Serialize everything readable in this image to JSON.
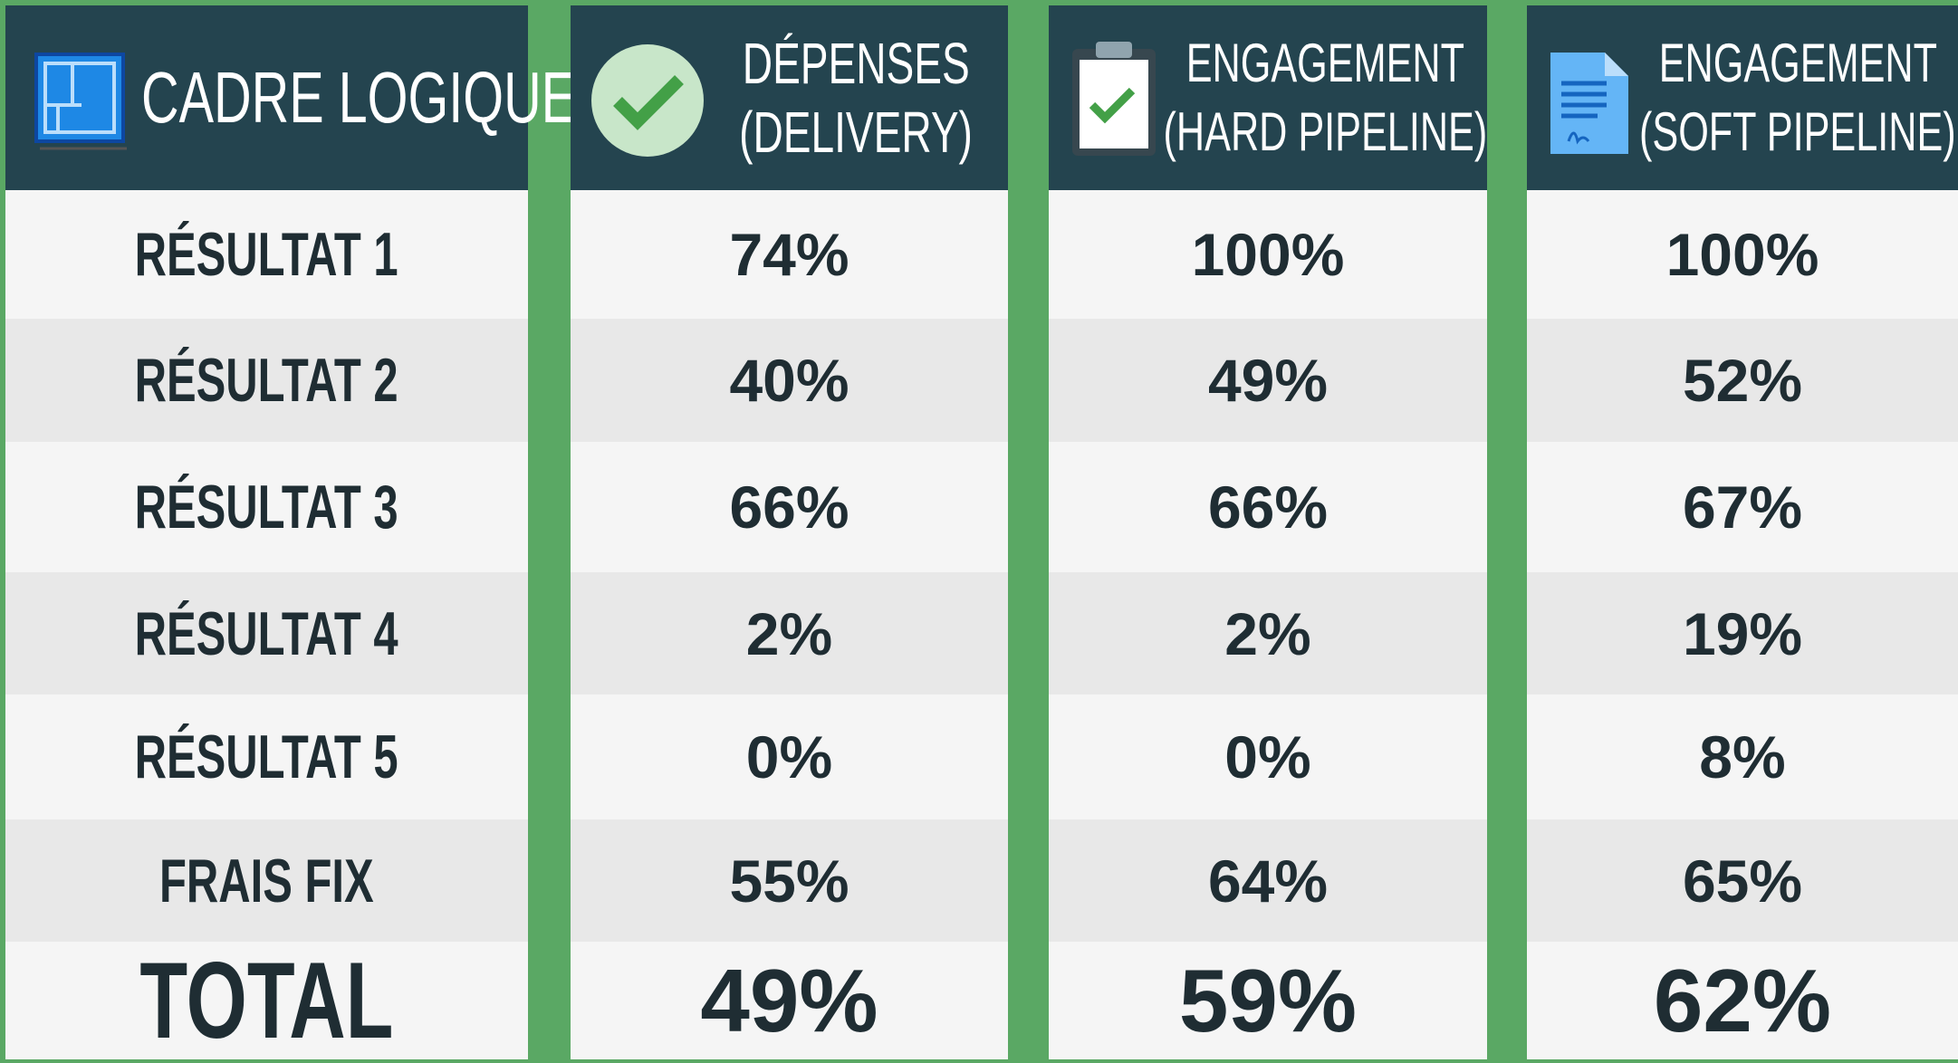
{
  "header": [
    {
      "title": [
        "CADRE LOGIQUE"
      ]
    },
    {
      "title": [
        "DÉPENSES",
        "(DELIVERY)"
      ]
    },
    {
      "title": [
        "ENGAGEMENT",
        "(HARD PIPELINE)"
      ]
    },
    {
      "title": [
        "ENGAGEMENT",
        "(SOFT PIPELINE)"
      ]
    }
  ],
  "table": {
    "rows": [
      [
        "RÉSULTAT 1",
        "74%",
        "100%",
        "100%"
      ],
      [
        "RÉSULTAT 2",
        "40%",
        "49%",
        "52%"
      ],
      [
        "RÉSULTAT 3",
        "66%",
        "66%",
        "67%"
      ],
      [
        "RÉSULTAT 4",
        "2%",
        "2%",
        "19%"
      ],
      [
        "RÉSULTAT 5",
        "0%",
        "0%",
        "8%"
      ],
      [
        "FRAIS FIX",
        "55%",
        "64%",
        "65%"
      ],
      [
        "TOTAL",
        "49%",
        "59%",
        "62%"
      ]
    ]
  }
}
